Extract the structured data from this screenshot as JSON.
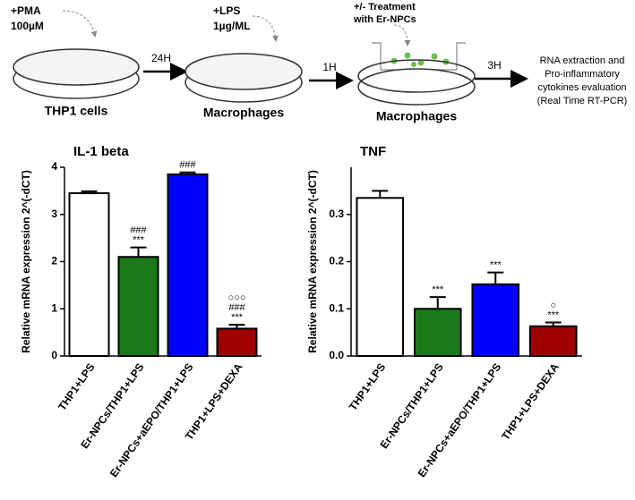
{
  "schematic": {
    "pma": "+PMA",
    "pma_dose": "100µM",
    "step1_time": "24H",
    "lps": "+LPS",
    "lps_dose": "1µg/ML",
    "step2_time": "1H",
    "treatment": "+/- Treatment",
    "treatment_with": "with Er-NPCs",
    "step3_time": "3H",
    "dish1": "THP1 cells",
    "dish2": "Macrophages",
    "dish3": "Macrophages",
    "result": [
      "RNA extraction and",
      "Pro-inflammatory",
      "cytokines evaluation",
      "(Real Time RT-PCR)"
    ]
  },
  "chart_data": [
    {
      "type": "bar",
      "title": "IL-1 beta",
      "y_label": "Relative mRNA expression 2^(-dCT)",
      "categories": [
        "THP1+LPS",
        "Er-NPCs/THP1+LPS",
        "Er-NPCs+aEPO/THP1+LPS",
        "THP1+LPS+DEXA"
      ],
      "values": [
        3.45,
        2.1,
        3.85,
        0.58
      ],
      "errors": [
        0.04,
        0.2,
        0.04,
        0.08
      ],
      "colors": [
        "#ffffff",
        "#1a7a1a",
        "#0000ff",
        "#a00000"
      ],
      "annotations": [
        [],
        [
          "###",
          "***"
        ],
        [
          "###"
        ],
        [
          "○○○",
          "###",
          "***"
        ]
      ],
      "ylim": [
        0,
        4
      ],
      "yticks": [
        0,
        1,
        2,
        3,
        4
      ]
    },
    {
      "type": "bar",
      "title": "TNF",
      "y_label": "Relative mRNA expression 2^(-dCT)",
      "categories": [
        "THP1+LPS",
        "Er-NPCs/THP1+LPS",
        "Er-NPCs+aEPO/THP1+LPS",
        "THP1+LPS+DEXA"
      ],
      "values": [
        0.335,
        0.1,
        0.152,
        0.063
      ],
      "errors": [
        0.015,
        0.025,
        0.025,
        0.008
      ],
      "colors": [
        "#ffffff",
        "#1a7a1a",
        "#0000ff",
        "#a00000"
      ],
      "annotations": [
        [],
        [
          "***"
        ],
        [
          "***"
        ],
        [
          "○",
          "***"
        ]
      ],
      "ylim": [
        0,
        0.4
      ],
      "yticks": [
        {
          "value": 0,
          "label": "0.0"
        },
        0.1,
        0.2,
        0.3
      ]
    }
  ]
}
